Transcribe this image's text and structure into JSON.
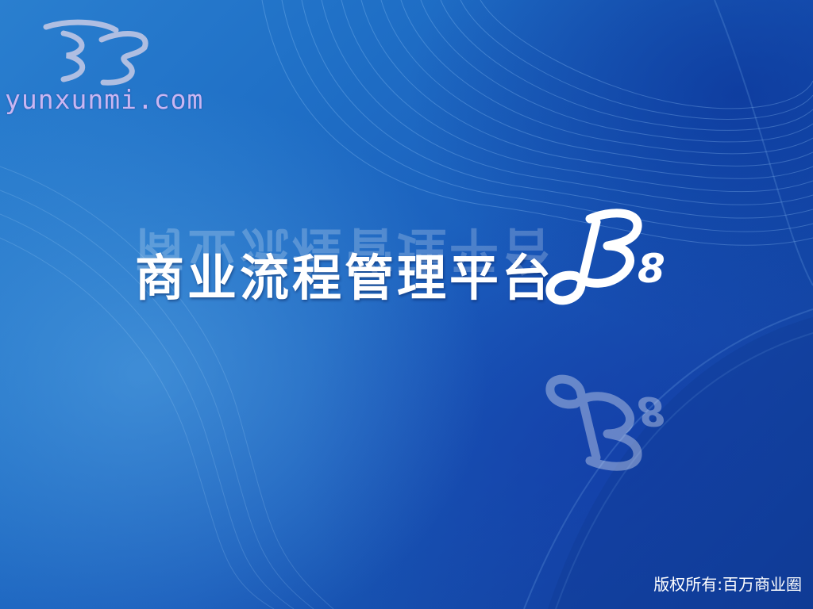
{
  "watermark": {
    "site": "yunxunmi.com",
    "emblem": "yunxunmi-logo-icon"
  },
  "product": {
    "title": "商业流程管理平台",
    "version": "8",
    "logo": "b8-logo-icon"
  },
  "footer": {
    "copyright": "版权所有:百万商业圈"
  },
  "colors": {
    "background_light": "#2a7fcf",
    "background_dark": "#103c95",
    "title": "#ffffff",
    "watermark_text": "#c9b6f2"
  }
}
